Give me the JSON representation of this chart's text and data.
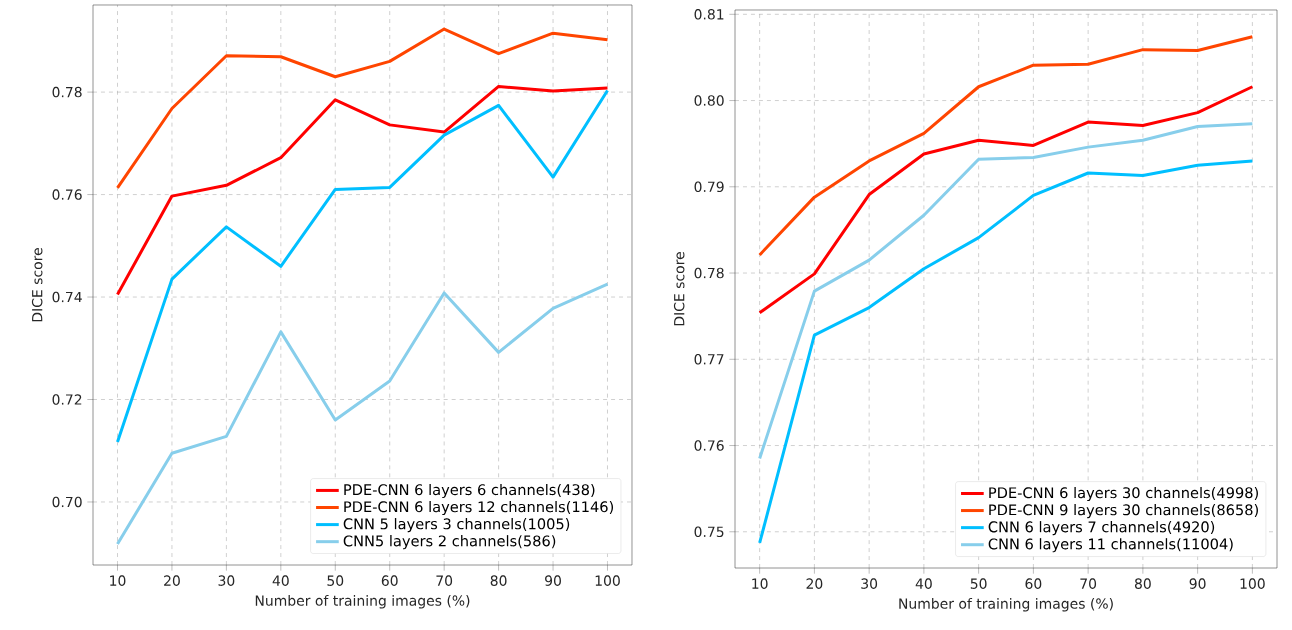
{
  "chart_data": [
    {
      "type": "line",
      "xlabel": "Number of training images (%)",
      "ylabel": "DICE score",
      "x": [
        10,
        20,
        30,
        40,
        50,
        60,
        70,
        80,
        90,
        100
      ],
      "series": [
        {
          "name": "PDE-CNN 6 layers 6 channels(438)",
          "color": "#ff0000",
          "values": [
            0.7405,
            0.7597,
            0.7618,
            0.7672,
            0.7785,
            0.7736,
            0.7722,
            0.7811,
            0.7802,
            0.7808
          ]
        },
        {
          "name": "PDE-CNN 6 layers 12 channels(1146)",
          "color": "#ff4500",
          "values": [
            0.7613,
            0.7768,
            0.7871,
            0.7869,
            0.783,
            0.786,
            0.7923,
            0.7875,
            0.7915,
            0.7902
          ]
        },
        {
          "name": "CNN 5 layers 3 channels(1005)",
          "color": "#00bfff",
          "values": [
            0.7117,
            0.7435,
            0.7537,
            0.746,
            0.761,
            0.7614,
            0.7716,
            0.7774,
            0.7634,
            0.7803
          ]
        },
        {
          "name": "CNN5 layers 2 channels(586)",
          "color": "#87ceeb",
          "values": [
            0.6918,
            0.7095,
            0.7128,
            0.7332,
            0.716,
            0.7236,
            0.7408,
            0.7292,
            0.7378,
            0.7425
          ]
        }
      ],
      "xlim": [
        5.5,
        104.5
      ],
      "ylim": [
        0.6877,
        0.797
      ],
      "xticks": [
        10,
        20,
        30,
        40,
        50,
        60,
        70,
        80,
        90,
        100
      ],
      "yticks": [
        {
          "value": 0.7,
          "label": "0.70"
        },
        {
          "value": 0.72,
          "label": "0.72"
        },
        {
          "value": 0.74,
          "label": "0.74"
        },
        {
          "value": 0.76,
          "label": "0.76"
        },
        {
          "value": 0.78,
          "label": "0.78"
        }
      ],
      "grid": true,
      "legend": "bottom right"
    },
    {
      "type": "line",
      "xlabel": "Number of training images (%)",
      "ylabel": "DICE score",
      "x": [
        10,
        20,
        30,
        40,
        50,
        60,
        70,
        80,
        90,
        100
      ],
      "series": [
        {
          "name": "PDE-CNN 6 layers 30 channels(4998)",
          "color": "#ff0000",
          "values": [
            0.7754,
            0.7799,
            0.7891,
            0.7938,
            0.7954,
            0.7948,
            0.7975,
            0.7971,
            0.7986,
            0.8016
          ]
        },
        {
          "name": "PDE-CNN 9 layers 30 channels(8658)",
          "color": "#ff4500",
          "values": [
            0.7821,
            0.7888,
            0.793,
            0.7962,
            0.8016,
            0.8041,
            0.8042,
            0.8059,
            0.8058,
            0.8074
          ]
        },
        {
          "name": "CNN 6 layers 7 channels(4920)",
          "color": "#00bfff",
          "values": [
            0.7487,
            0.7728,
            0.776,
            0.7805,
            0.7841,
            0.789,
            0.7916,
            0.7913,
            0.7925,
            0.793
          ]
        },
        {
          "name": "CNN 6 layers 11 channels(11004)",
          "color": "#87ceeb",
          "values": [
            0.7585,
            0.7779,
            0.7815,
            0.7867,
            0.7932,
            0.7934,
            0.7946,
            0.7954,
            0.797,
            0.7973
          ]
        }
      ],
      "xlim": [
        5.5,
        104.5
      ],
      "ylim": [
        0.7458,
        0.8105
      ],
      "xticks": [
        10,
        20,
        30,
        40,
        50,
        60,
        70,
        80,
        90,
        100
      ],
      "yticks": [
        {
          "value": 0.75,
          "label": "0.75"
        },
        {
          "value": 0.76,
          "label": "0.76"
        },
        {
          "value": 0.77,
          "label": "0.77"
        },
        {
          "value": 0.78,
          "label": "0.78"
        },
        {
          "value": 0.79,
          "label": "0.79"
        },
        {
          "value": 0.8,
          "label": "0.80"
        },
        {
          "value": 0.81,
          "label": "0.81"
        }
      ],
      "grid": true,
      "legend": "bottom right"
    }
  ]
}
